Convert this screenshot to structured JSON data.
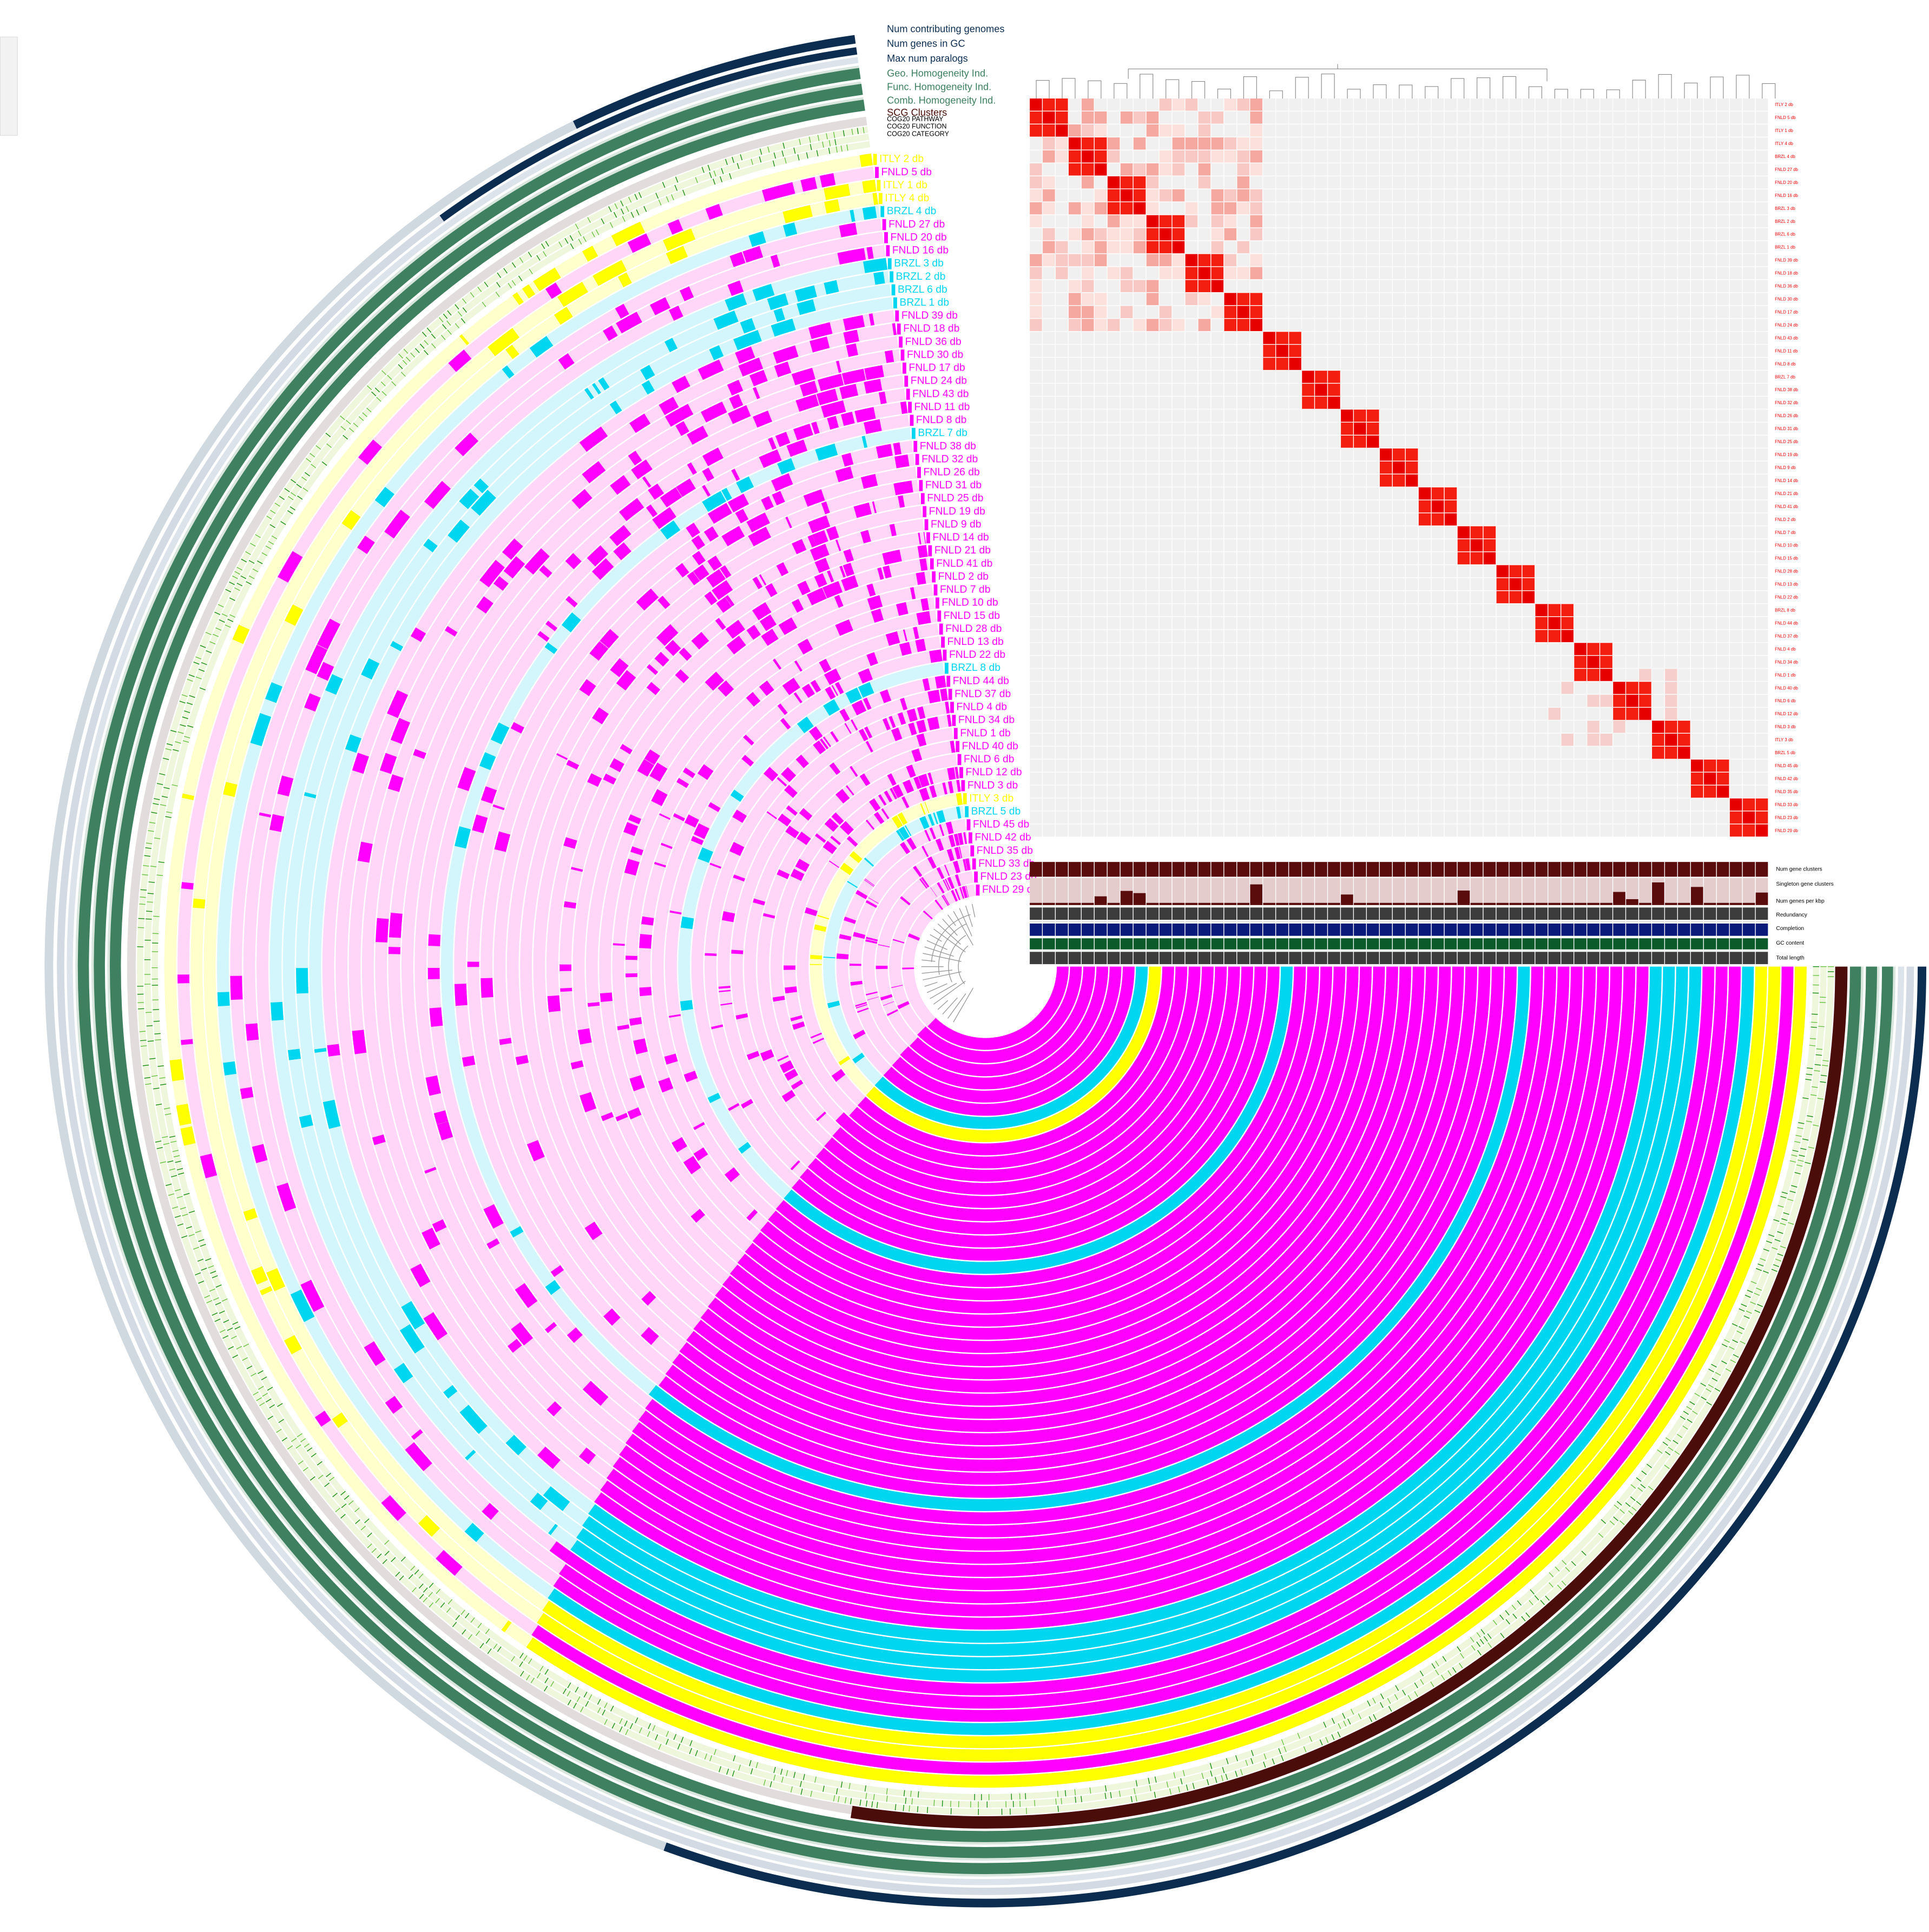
{
  "layers": [
    "Num contributing genomes",
    "Num genes in GC",
    "Max num paralogs",
    "Geo. Homogeneity Ind.",
    "Func. Homogeneity Ind.",
    "Comb. Homogeneity Ind.",
    "SCG Clusters",
    "COG20 PATHWAY",
    "COG20 FUNCTION",
    "COG20 CATEGORY"
  ],
  "groups": {
    "ITLY": {
      "color": "#ffff00",
      "light": "#ffffcc"
    },
    "FNLD": {
      "color": "#ff00ff",
      "light": "#ffd6f8"
    },
    "BRZL": {
      "color": "#00d6f0",
      "light": "#d2f6fc"
    }
  },
  "genomes": [
    {
      "name": "ITLY 2 db",
      "group": "ITLY"
    },
    {
      "name": "FNLD 5 db",
      "group": "FNLD"
    },
    {
      "name": "ITLY 1 db",
      "group": "ITLY"
    },
    {
      "name": "ITLY 4 db",
      "group": "ITLY"
    },
    {
      "name": "BRZL 4 db",
      "group": "BRZL"
    },
    {
      "name": "FNLD 27 db",
      "group": "FNLD"
    },
    {
      "name": "FNLD 20 db",
      "group": "FNLD"
    },
    {
      "name": "FNLD 16 db",
      "group": "FNLD"
    },
    {
      "name": "BRZL 3 db",
      "group": "BRZL"
    },
    {
      "name": "BRZL 2 db",
      "group": "BRZL"
    },
    {
      "name": "BRZL 6 db",
      "group": "BRZL"
    },
    {
      "name": "BRZL 1 db",
      "group": "BRZL"
    },
    {
      "name": "FNLD 39 db",
      "group": "FNLD"
    },
    {
      "name": "FNLD 18 db",
      "group": "FNLD"
    },
    {
      "name": "FNLD 36 db",
      "group": "FNLD"
    },
    {
      "name": "FNLD 30 db",
      "group": "FNLD"
    },
    {
      "name": "FNLD 17 db",
      "group": "FNLD"
    },
    {
      "name": "FNLD 24 db",
      "group": "FNLD"
    },
    {
      "name": "FNLD 43 db",
      "group": "FNLD"
    },
    {
      "name": "FNLD 11 db",
      "group": "FNLD"
    },
    {
      "name": "FNLD 8 db",
      "group": "FNLD"
    },
    {
      "name": "BRZL 7 db",
      "group": "BRZL"
    },
    {
      "name": "FNLD 38 db",
      "group": "FNLD"
    },
    {
      "name": "FNLD 32 db",
      "group": "FNLD"
    },
    {
      "name": "FNLD 26 db",
      "group": "FNLD"
    },
    {
      "name": "FNLD 31 db",
      "group": "FNLD"
    },
    {
      "name": "FNLD 25 db",
      "group": "FNLD"
    },
    {
      "name": "FNLD 19 db",
      "group": "FNLD"
    },
    {
      "name": "FNLD 9 db",
      "group": "FNLD"
    },
    {
      "name": "FNLD 14 db",
      "group": "FNLD"
    },
    {
      "name": "FNLD 21 db",
      "group": "FNLD"
    },
    {
      "name": "FNLD 41 db",
      "group": "FNLD"
    },
    {
      "name": "FNLD 2 db",
      "group": "FNLD"
    },
    {
      "name": "FNLD 7 db",
      "group": "FNLD"
    },
    {
      "name": "FNLD 10 db",
      "group": "FNLD"
    },
    {
      "name": "FNLD 15 db",
      "group": "FNLD"
    },
    {
      "name": "FNLD 28 db",
      "group": "FNLD"
    },
    {
      "name": "FNLD 13 db",
      "group": "FNLD"
    },
    {
      "name": "FNLD 22 db",
      "group": "FNLD"
    },
    {
      "name": "BRZL 8 db",
      "group": "BRZL"
    },
    {
      "name": "FNLD 44 db",
      "group": "FNLD"
    },
    {
      "name": "FNLD 37 db",
      "group": "FNLD"
    },
    {
      "name": "FNLD 4 db",
      "group": "FNLD"
    },
    {
      "name": "FNLD 34 db",
      "group": "FNLD"
    },
    {
      "name": "FNLD 1 db",
      "group": "FNLD"
    },
    {
      "name": "FNLD 40 db",
      "group": "FNLD"
    },
    {
      "name": "FNLD 6 db",
      "group": "FNLD"
    },
    {
      "name": "FNLD 12 db",
      "group": "FNLD"
    },
    {
      "name": "FNLD 3 db",
      "group": "FNLD"
    },
    {
      "name": "ITLY 3 db",
      "group": "ITLY"
    },
    {
      "name": "BRZL 5 db",
      "group": "BRZL"
    },
    {
      "name": "FNLD 45 db",
      "group": "FNLD"
    },
    {
      "name": "FNLD 42 db",
      "group": "FNLD"
    },
    {
      "name": "FNLD 35 db",
      "group": "FNLD"
    },
    {
      "name": "FNLD 33 db",
      "group": "FNLD"
    },
    {
      "name": "FNLD 23 db",
      "group": "FNLD"
    },
    {
      "name": "FNLD 29 db",
      "group": "FNLD"
    }
  ],
  "genome_layers": [
    "Num gene clusters",
    "Singleton gene clusters",
    "Num genes per kbp",
    "Redundancy",
    "Completion",
    "GC content",
    "Total length"
  ]
}
